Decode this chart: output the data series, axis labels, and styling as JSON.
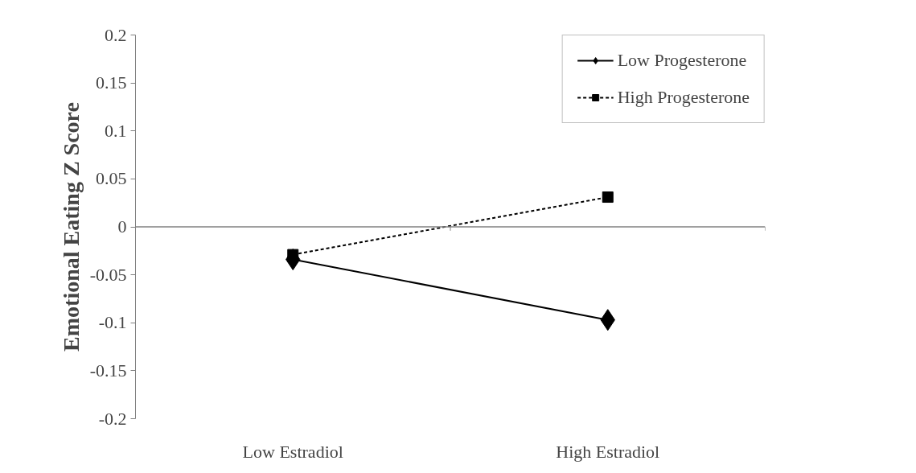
{
  "chart_data": {
    "type": "line",
    "ylabel": "Emotional Eating Z Score",
    "categories": [
      "Low Estradiol",
      "High Estradiol"
    ],
    "series": [
      {
        "name": "Low Progesterone",
        "color": "#000000",
        "values": [
          -0.034,
          -0.097
        ],
        "marker": "diamond",
        "line_style": "solid"
      },
      {
        "name": "High Progesterone",
        "color": "#000000",
        "values": [
          -0.029,
          0.031
        ],
        "marker": "square",
        "line_style": "dashed"
      }
    ],
    "ylim": [
      -0.2,
      0.2
    ],
    "yticks": [
      -0.2,
      -0.15,
      -0.1,
      -0.05,
      0,
      0.05,
      0.1,
      0.15,
      0.2
    ],
    "ref_lines": [
      {
        "axis": "y",
        "value": 0,
        "color": "#808080"
      }
    ],
    "grid": false,
    "legend": "top right"
  }
}
